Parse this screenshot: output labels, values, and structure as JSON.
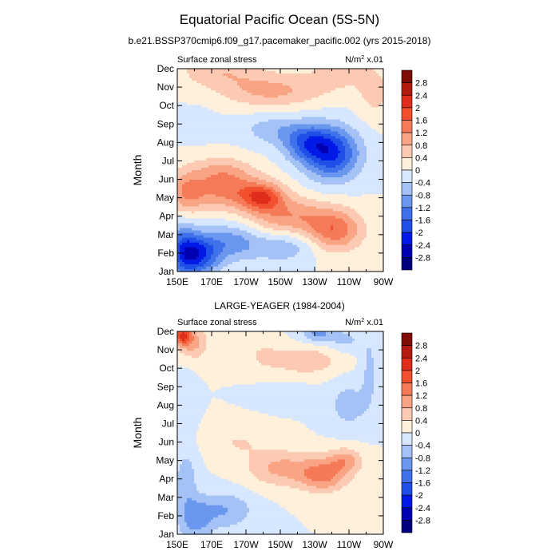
{
  "figure": {
    "title": "Equatorial Pacific Ocean (5S-5N)"
  },
  "chart_data": [
    {
      "type": "heatmap",
      "title": "b.e21.BSSP370cmip6.f09_g17.pacemaker_pacific.002 (yrs 2015-2018)",
      "left_label": "Surface zonal stress",
      "right_label": "N/m",
      "right_label_sup": "2",
      "right_label_suffix": " x.01",
      "xlabel": "",
      "ylabel": "Month",
      "x_tick_labels": [
        "150E",
        "170E",
        "170W",
        "150W",
        "130W",
        "110W",
        "90W"
      ],
      "x_ticks_deg_east": [
        150,
        170,
        190,
        210,
        230,
        250,
        270
      ],
      "xlim_deg_east": [
        150,
        270
      ],
      "y_tick_labels": [
        "Jan",
        "Feb",
        "Mar",
        "Apr",
        "May",
        "Jun",
        "Jul",
        "Aug",
        "Sep",
        "Oct",
        "Nov",
        "Dec"
      ],
      "contour_levels": [
        -2.8,
        -2.4,
        -2,
        -1.6,
        -1.2,
        -0.8,
        -0.4,
        0,
        0.4,
        0.8,
        1.2,
        1.6,
        2,
        2.4,
        2.8
      ],
      "colorbar_labels": [
        "2.8",
        "2.4",
        "2",
        "1.6",
        "1.2",
        "0.8",
        "0.4",
        "0",
        "-0.4",
        "-0.8",
        "-1.2",
        "-1.6",
        "-2",
        "-2.4",
        "-2.8"
      ],
      "features": [
        {
          "lon": 162,
          "month": 0.9,
          "value": -2.0,
          "lon_width": 12,
          "month_width": 1.1
        },
        {
          "lon": 153,
          "month": 1.2,
          "value": -1.2,
          "lon_width": 8,
          "month_width": 1.5
        },
        {
          "lon": 182,
          "month": 1.6,
          "value": -1.0,
          "lon_width": 16,
          "month_width": 1.0
        },
        {
          "lon": 212,
          "month": 1.3,
          "value": -0.7,
          "lon_width": 18,
          "month_width": 0.8
        },
        {
          "lon": 242,
          "month": 2.2,
          "value": 1.4,
          "lon_width": 16,
          "month_width": 1.1
        },
        {
          "lon": 215,
          "month": 3.0,
          "value": 1.1,
          "lon_width": 25,
          "month_width": 1.0
        },
        {
          "lon": 180,
          "month": 4.4,
          "value": 1.3,
          "lon_width": 25,
          "month_width": 1.0
        },
        {
          "lon": 200,
          "month": 4.0,
          "value": 1.4,
          "lon_width": 12,
          "month_width": 0.7
        },
        {
          "lon": 155,
          "month": 4.2,
          "value": 0.9,
          "lon_width": 10,
          "month_width": 1.2
        },
        {
          "lon": 175,
          "month": 5.5,
          "value": 0.7,
          "lon_width": 18,
          "month_width": 0.8
        },
        {
          "lon": 240,
          "month": 6.4,
          "value": -2.0,
          "lon_width": 16,
          "month_width": 1.4
        },
        {
          "lon": 225,
          "month": 7.0,
          "value": -1.3,
          "lon_width": 14,
          "month_width": 1.0
        },
        {
          "lon": 205,
          "month": 7.7,
          "value": -0.6,
          "lon_width": 18,
          "month_width": 0.8
        },
        {
          "lon": 160,
          "month": 8.0,
          "value": -0.3,
          "lon_width": 12,
          "month_width": 0.8
        },
        {
          "lon": 205,
          "month": 9.8,
          "value": 0.9,
          "lon_width": 30,
          "month_width": 0.9
        },
        {
          "lon": 265,
          "month": 9.6,
          "value": 0.5,
          "lon_width": 10,
          "month_width": 1.4
        },
        {
          "lon": 175,
          "month": 10.9,
          "value": 0.7,
          "lon_width": 25,
          "month_width": 0.9
        },
        {
          "lon": 245,
          "month": 10.8,
          "value": 0.5,
          "lon_width": 20,
          "month_width": 1.0
        }
      ]
    },
    {
      "type": "heatmap",
      "title": "LARGE-YEAGER (1984-2004)",
      "left_label": "Surface zonal stress",
      "right_label": "N/m",
      "right_label_sup": "2",
      "right_label_suffix": " x.01",
      "xlabel": "",
      "ylabel": "Month",
      "x_tick_labels": [
        "150E",
        "170E",
        "170W",
        "150W",
        "130W",
        "110W",
        "90W"
      ],
      "x_ticks_deg_east": [
        150,
        170,
        190,
        210,
        230,
        250,
        270
      ],
      "xlim_deg_east": [
        150,
        270
      ],
      "y_tick_labels": [
        "Jan",
        "Feb",
        "Mar",
        "Apr",
        "May",
        "Jun",
        "Jul",
        "Aug",
        "Sep",
        "Oct",
        "Nov",
        "Dec"
      ],
      "contour_levels": [
        -2.8,
        -2.4,
        -2,
        -1.6,
        -1.2,
        -0.8,
        -0.4,
        0,
        0.4,
        0.8,
        1.2,
        1.6,
        2,
        2.4,
        2.8
      ],
      "colorbar_labels": [
        "2.8",
        "2.4",
        "2",
        "1.6",
        "1.2",
        "0.8",
        "0.4",
        "0",
        "-0.4",
        "-0.8",
        "-1.2",
        "-1.6",
        "-2",
        "-2.4",
        "-2.8"
      ],
      "features": [
        {
          "lon": 160,
          "month": 0.8,
          "value": -0.9,
          "lon_width": 10,
          "month_width": 1.2
        },
        {
          "lon": 178,
          "month": 1.3,
          "value": -0.8,
          "lon_width": 16,
          "month_width": 1.0
        },
        {
          "lon": 155,
          "month": 3.0,
          "value": -0.7,
          "lon_width": 6,
          "month_width": 1.5
        },
        {
          "lon": 235,
          "month": 3.2,
          "value": 1.3,
          "lon_width": 14,
          "month_width": 0.9
        },
        {
          "lon": 210,
          "month": 3.6,
          "value": 0.9,
          "lon_width": 20,
          "month_width": 1.0
        },
        {
          "lon": 248,
          "month": 4.0,
          "value": 0.9,
          "lon_width": 10,
          "month_width": 0.7
        },
        {
          "lon": 185,
          "month": 5.0,
          "value": 0.4,
          "lon_width": 16,
          "month_width": 0.8
        },
        {
          "lon": 250,
          "month": 7.0,
          "value": -0.6,
          "lon_width": 12,
          "month_width": 1.3
        },
        {
          "lon": 215,
          "month": 7.6,
          "value": -0.3,
          "lon_width": 14,
          "month_width": 0.6
        },
        {
          "lon": 155,
          "month": 7.2,
          "value": -0.3,
          "lon_width": 5,
          "month_width": 1.5
        },
        {
          "lon": 225,
          "month": 9.4,
          "value": 0.7,
          "lon_width": 20,
          "month_width": 0.8
        },
        {
          "lon": 200,
          "month": 9.7,
          "value": 0.4,
          "lon_width": 10,
          "month_width": 0.8
        },
        {
          "lon": 153,
          "month": 10.8,
          "value": 1.9,
          "lon_width": 5,
          "month_width": 0.6
        },
        {
          "lon": 160,
          "month": 10.4,
          "value": 0.9,
          "lon_width": 8,
          "month_width": 0.9
        },
        {
          "lon": 232,
          "month": 10.9,
          "value": -0.9,
          "lon_width": 10,
          "month_width": 0.5
        },
        {
          "lon": 248,
          "month": 10.5,
          "value": -0.5,
          "lon_width": 10,
          "month_width": 0.6
        },
        {
          "lon": 262,
          "month": 9.0,
          "value": -0.5,
          "lon_width": 5,
          "month_width": 2.0
        }
      ]
    }
  ],
  "colors": {
    "levels_fill": [
      "#00007f",
      "#0000b2",
      "#0019e6",
      "#1f4fe6",
      "#3f72ea",
      "#6b97ee",
      "#a4c2f6",
      "#d7e7ff",
      "#fff0dc",
      "#fccab3",
      "#f9a485",
      "#f57a57",
      "#f2502f",
      "#e02c1a",
      "#b31b10",
      "#7f0d05"
    ],
    "grid_line": "#000000"
  }
}
